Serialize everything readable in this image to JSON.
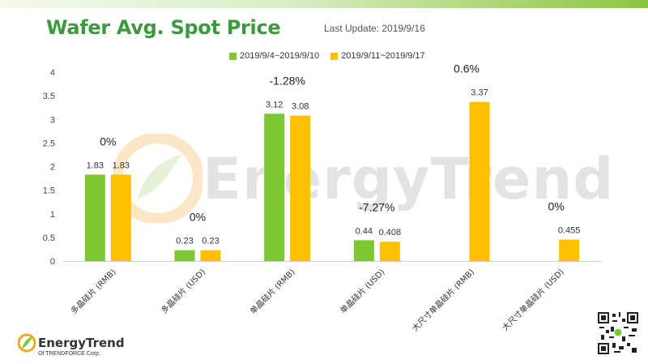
{
  "header": {
    "title": "Wafer Avg. Spot Price",
    "last_update": "Last Update: 2019/9/16"
  },
  "watermark": {
    "text": "EnergyTrend"
  },
  "brand": {
    "name": "EnergyTrend",
    "subtitle": "Of TRENDFORCE Corp."
  },
  "colors": {
    "series1": "#7dc832",
    "series2": "#ffc000",
    "accent": "#3a9a3c"
  },
  "chart_data": {
    "type": "bar",
    "categories": [
      "多晶硅片 (RMB)",
      "多晶硅片 (USD)",
      "单晶硅片 (RMB)",
      "单晶硅片 (USD)",
      "大尺寸单晶硅片 (RMB)",
      "大尺寸单晶硅片 (USD)"
    ],
    "series": [
      {
        "name": "2019/9/4~2019/9/10",
        "values": [
          1.83,
          0.23,
          3.12,
          0.44,
          null,
          null
        ],
        "labels": [
          "1.83",
          "0.23",
          "3.12",
          "0.44",
          "",
          ""
        ]
      },
      {
        "name": "2019/9/11~2019/9/17",
        "values": [
          1.83,
          0.23,
          3.08,
          0.408,
          3.37,
          0.455
        ],
        "labels": [
          "1.83",
          "0.23",
          "3.08",
          "0.408",
          "3.37",
          "0.455"
        ]
      }
    ],
    "changes": [
      "0%",
      "0%",
      "-1.28%",
      "-7.27%",
      "0.6%",
      "0%"
    ],
    "yticks": [
      "0",
      "0.5",
      "1",
      "1.5",
      "2",
      "2.5",
      "3",
      "3.5",
      "4"
    ],
    "ylim": [
      0,
      4
    ],
    "grid": false,
    "legend": "top-center"
  }
}
